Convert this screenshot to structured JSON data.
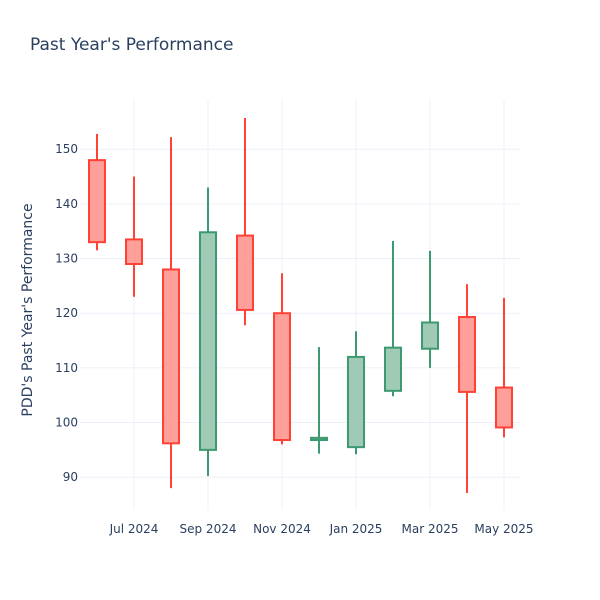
{
  "chart_data": {
    "type": "candlestick",
    "title": "Past Year's Performance",
    "xlabel": "",
    "ylabel": "PDD's Past Year's Performance",
    "ylim": [
      84,
      159
    ],
    "y_ticks": [
      90,
      100,
      110,
      120,
      130,
      140,
      150
    ],
    "x_tick_labels": [
      "Jul 2024",
      "Sep 2024",
      "Nov 2024",
      "Jan 2025",
      "Mar 2025",
      "May 2025"
    ],
    "grid": true,
    "legend": "none",
    "colors": {
      "increasing_line": "#3d9970",
      "increasing_fill": "#9fcab6",
      "decreasing_line": "#ff4136",
      "decreasing_fill": "#ff9f9a",
      "grid": "#ebf0f8",
      "text": "#2a3f5f"
    },
    "candles": [
      {
        "period": "2024-06",
        "open": 148.0,
        "high": 152.8,
        "low": 131.5,
        "close": 133.0
      },
      {
        "period": "2024-07",
        "open": 133.5,
        "high": 145.0,
        "low": 123.0,
        "close": 129.0
      },
      {
        "period": "2024-08",
        "open": 128.0,
        "high": 152.2,
        "low": 88.0,
        "close": 96.2
      },
      {
        "period": "2024-09",
        "open": 95.0,
        "high": 143.0,
        "low": 90.2,
        "close": 134.8
      },
      {
        "period": "2024-10",
        "open": 134.2,
        "high": 155.7,
        "low": 117.8,
        "close": 120.6
      },
      {
        "period": "2024-11",
        "open": 120.0,
        "high": 127.3,
        "low": 96.0,
        "close": 96.8
      },
      {
        "period": "2024-12",
        "open": 96.8,
        "high": 113.8,
        "low": 94.3,
        "close": 97.2
      },
      {
        "period": "2025-01",
        "open": 95.5,
        "high": 116.7,
        "low": 94.2,
        "close": 112.0
      },
      {
        "period": "2025-02",
        "open": 105.8,
        "high": 133.2,
        "low": 104.8,
        "close": 113.7
      },
      {
        "period": "2025-03",
        "open": 113.5,
        "high": 131.4,
        "low": 110.0,
        "close": 118.3
      },
      {
        "period": "2025-04",
        "open": 119.3,
        "high": 125.3,
        "low": 87.1,
        "close": 105.6
      },
      {
        "period": "2025-05",
        "open": 106.4,
        "high": 122.8,
        "low": 97.3,
        "close": 99.1
      }
    ]
  }
}
